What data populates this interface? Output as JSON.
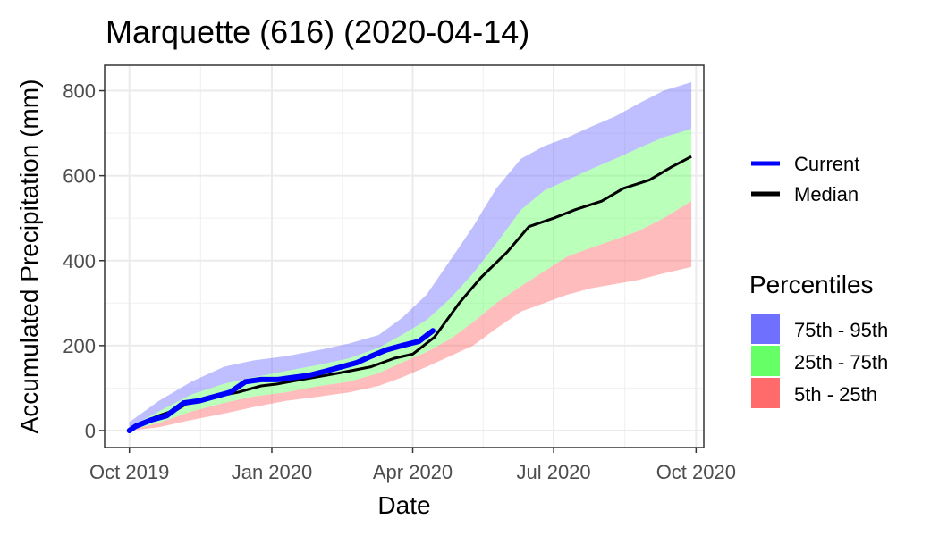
{
  "chart_data": {
    "type": "area",
    "title": "Marquette (616) (2020-04-14)",
    "xlabel": "Date",
    "ylabel": "Accumulated Precipitation (mm)",
    "x_ticks": [
      "Oct 2019",
      "Jan 2020",
      "Apr 2020",
      "Jul 2020",
      "Oct 2020"
    ],
    "x_tick_dates": [
      "2019-10-01",
      "2020-01-01",
      "2020-04-01",
      "2020-07-01",
      "2020-10-01"
    ],
    "xlim": [
      "2019-09-15",
      "2020-10-06"
    ],
    "ylim": [
      -40,
      860
    ],
    "y_ticks": [
      0,
      200,
      400,
      600,
      800
    ],
    "grid": true,
    "legend_position": "right",
    "colors": {
      "current": "#0000ff",
      "median": "#000000",
      "p75_95": "#7070ff",
      "p25_75": "#66ff66",
      "p5_25": "#ff6b6b"
    },
    "lines_legend": [
      {
        "key": "current",
        "label": "Current"
      },
      {
        "key": "median",
        "label": "Median"
      }
    ],
    "percentiles_title": "Percentiles",
    "percentiles_legend": [
      {
        "key": "p75_95",
        "label": "75th - 95th"
      },
      {
        "key": "p25_75",
        "label": "25th - 75th"
      },
      {
        "key": "p5_25",
        "label": "5th - 25th"
      }
    ],
    "band_dates": [
      "2019-10-01",
      "2019-10-20",
      "2019-11-10",
      "2019-12-01",
      "2019-12-20",
      "2020-01-10",
      "2020-02-01",
      "2020-02-20",
      "2020-03-10",
      "2020-03-25",
      "2020-04-10",
      "2020-04-25",
      "2020-05-10",
      "2020-05-25",
      "2020-06-10",
      "2020-06-25",
      "2020-07-10",
      "2020-07-25",
      "2020-08-10",
      "2020-08-25",
      "2020-09-10",
      "2020-09-28"
    ],
    "p5": [
      0,
      8,
      25,
      40,
      55,
      70,
      80,
      90,
      105,
      125,
      150,
      175,
      200,
      240,
      280,
      300,
      320,
      335,
      345,
      355,
      370,
      385
    ],
    "p25": [
      0,
      18,
      45,
      65,
      80,
      90,
      105,
      115,
      135,
      160,
      185,
      215,
      255,
      300,
      340,
      375,
      410,
      430,
      450,
      470,
      500,
      540
    ],
    "p75": [
      8,
      45,
      85,
      110,
      125,
      140,
      155,
      170,
      195,
      225,
      260,
      310,
      370,
      440,
      520,
      565,
      590,
      615,
      640,
      665,
      690,
      710
    ],
    "p95": [
      20,
      70,
      115,
      150,
      165,
      175,
      190,
      205,
      225,
      265,
      320,
      400,
      480,
      570,
      640,
      670,
      690,
      715,
      740,
      770,
      800,
      820
    ],
    "median": {
      "x": [
        "2019-10-01",
        "2019-10-10",
        "2019-10-20",
        "2019-11-01",
        "2019-11-10",
        "2019-11-25",
        "2019-12-10",
        "2019-12-25",
        "2020-01-05",
        "2020-01-20",
        "2020-02-05",
        "2020-02-20",
        "2020-03-05",
        "2020-03-20",
        "2020-04-01",
        "2020-04-15",
        "2020-05-01",
        "2020-05-15",
        "2020-06-01",
        "2020-06-15",
        "2020-07-01",
        "2020-07-15",
        "2020-08-01",
        "2020-08-15",
        "2020-09-01",
        "2020-09-15",
        "2020-09-28"
      ],
      "y": [
        0,
        20,
        35,
        50,
        70,
        80,
        90,
        105,
        110,
        120,
        130,
        140,
        150,
        170,
        180,
        220,
        300,
        360,
        420,
        480,
        500,
        520,
        540,
        570,
        590,
        620,
        645
      ]
    },
    "current": {
      "x": [
        "2019-10-01",
        "2019-10-05",
        "2019-10-15",
        "2019-10-25",
        "2019-11-05",
        "2019-11-15",
        "2019-11-25",
        "2019-12-05",
        "2019-12-15",
        "2019-12-25",
        "2020-01-05",
        "2020-01-15",
        "2020-01-25",
        "2020-02-05",
        "2020-02-15",
        "2020-02-25",
        "2020-03-05",
        "2020-03-15",
        "2020-03-25",
        "2020-04-05",
        "2020-04-14"
      ],
      "y": [
        0,
        10,
        25,
        35,
        65,
        70,
        80,
        90,
        115,
        120,
        120,
        125,
        130,
        140,
        150,
        160,
        175,
        190,
        200,
        210,
        235
      ]
    }
  }
}
